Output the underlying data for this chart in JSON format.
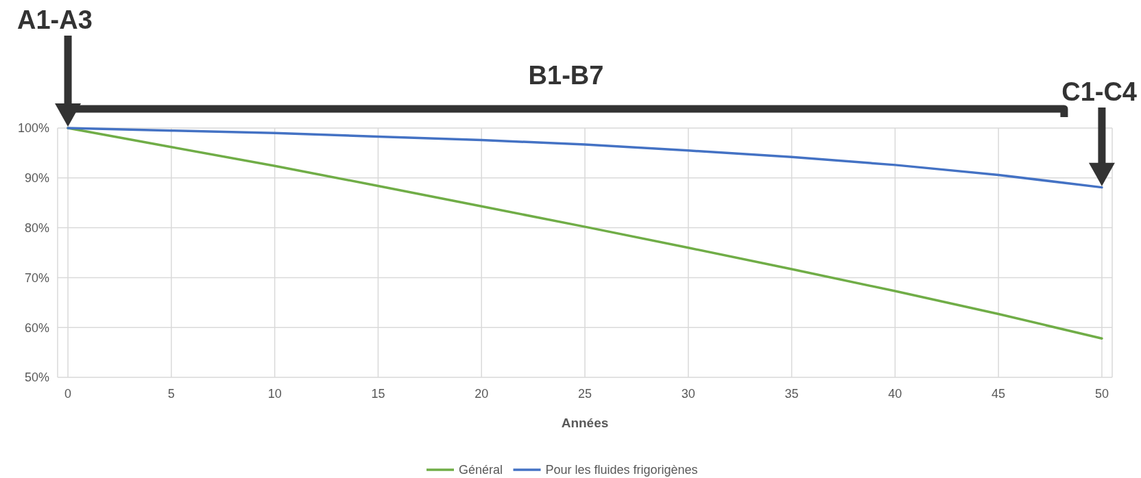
{
  "chart_data": {
    "type": "line",
    "xlabel": "Années",
    "x": [
      0,
      5,
      10,
      15,
      20,
      25,
      30,
      35,
      40,
      45,
      50
    ],
    "series": [
      {
        "name": "Général",
        "color": "#70ad47",
        "values": [
          100,
          96.2,
          92.4,
          88.4,
          84.3,
          80.2,
          76,
          71.7,
          67.3,
          62.7,
          57.8
        ]
      },
      {
        "name": "Pour les fluides frigorigènes",
        "color": "#4472c4",
        "values": [
          100,
          99.5,
          99,
          98.3,
          97.6,
          96.7,
          95.5,
          94.2,
          92.6,
          90.6,
          88.1
        ]
      }
    ],
    "xlim": [
      -0.5,
      50.5
    ],
    "xticks": [
      0,
      5,
      10,
      15,
      20,
      25,
      30,
      35,
      40,
      45,
      50
    ],
    "ylim": [
      50,
      100
    ],
    "yticks": [
      {
        "value": 50,
        "label": "50%"
      },
      {
        "value": 60,
        "label": "60%"
      },
      {
        "value": 70,
        "label": "70%"
      },
      {
        "value": 80,
        "label": "80%"
      },
      {
        "value": 90,
        "label": "90%"
      },
      {
        "value": 100,
        "label": "100%"
      }
    ],
    "grid": true,
    "legend": "bottom",
    "marker": "none",
    "line_style": "solid",
    "annotations": [
      "A1-A3",
      "B1-B7",
      "C1-C4"
    ]
  }
}
